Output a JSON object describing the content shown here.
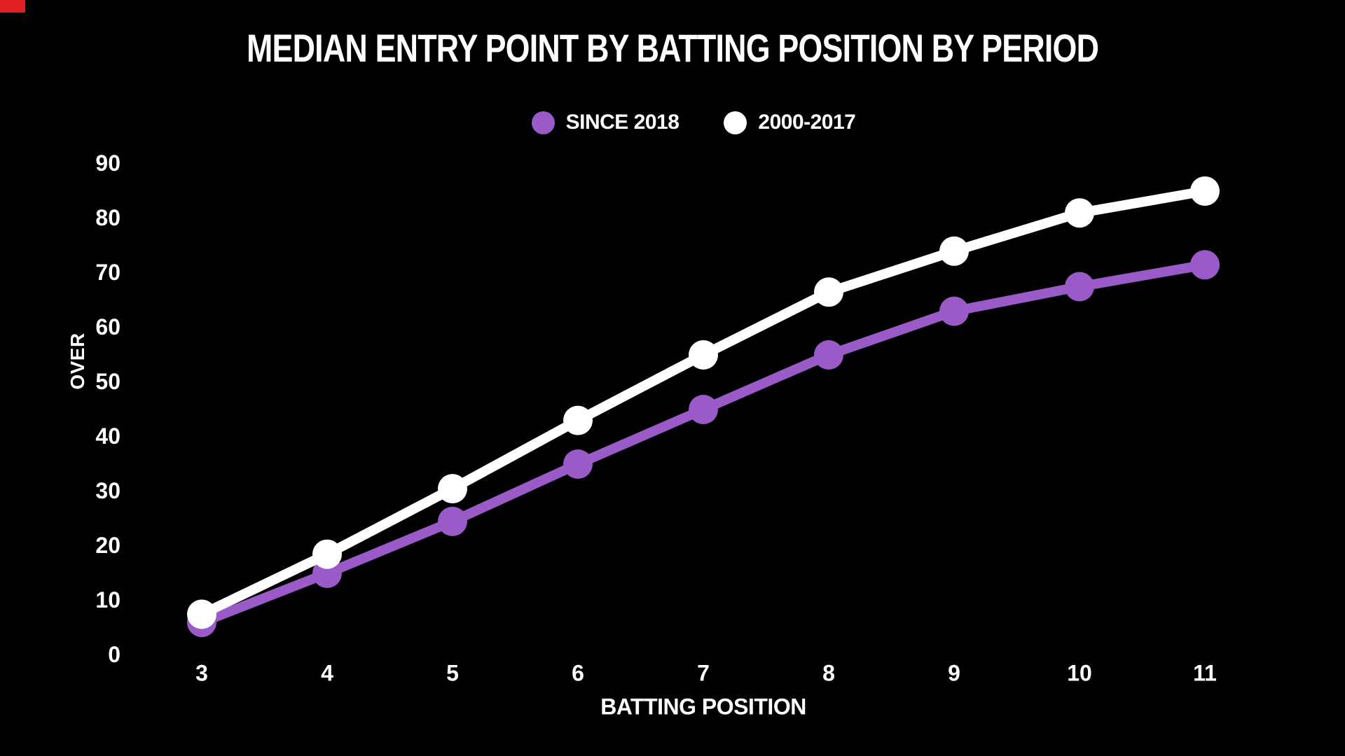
{
  "page": {
    "background": "#000000",
    "text_color": "#ffffff",
    "corner_artifact_color": "#e02020"
  },
  "chart_data": {
    "type": "line",
    "title": "MEDIAN ENTRY POINT BY BATTING POSITION BY PERIOD",
    "xlabel": "BATTING POSITION",
    "ylabel": "OVER",
    "categories": [
      3,
      4,
      5,
      6,
      7,
      8,
      9,
      10,
      11
    ],
    "series": [
      {
        "name": "SINCE 2018",
        "color": "#9a5ac8",
        "values": [
          6,
          15,
          24.5,
          35,
          45,
          55,
          63,
          67.5,
          71.5
        ]
      },
      {
        "name": "2000-2017",
        "color": "#ffffff",
        "values": [
          7.5,
          18.5,
          30.5,
          43,
          55,
          66.5,
          74,
          81,
          85
        ]
      }
    ],
    "ylim": [
      0,
      90
    ],
    "ytick_step": 10,
    "grid": false,
    "legend_position": "top-center",
    "marker_radius": 21,
    "line_width": 14
  }
}
